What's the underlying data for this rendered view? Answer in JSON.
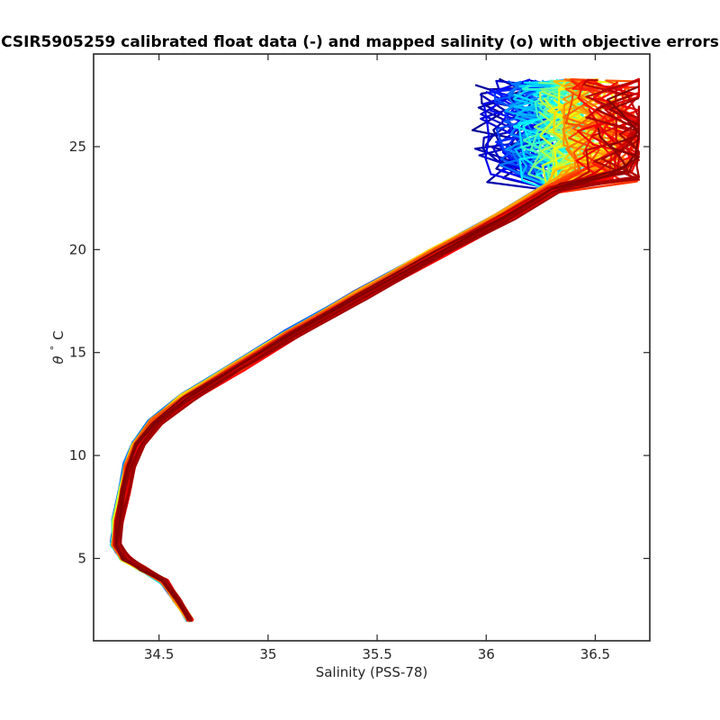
{
  "chart_data": {
    "type": "line",
    "title": "CSIR5905259 calibrated float data (-) and mapped salinity (o) with objective errors",
    "xlabel": "Salinity (PSS-78)",
    "ylabel_symbol": "θ",
    "ylabel_degree": "°",
    "ylabel_unit": "C",
    "xlim": [
      34.2,
      36.75
    ],
    "ylim": [
      1.0,
      29.5
    ],
    "xticks": [
      34.5,
      35,
      35.5,
      36,
      36.5
    ],
    "xtick_labels": [
      "34.5",
      "35",
      "35.5",
      "36",
      "36.5"
    ],
    "yticks": [
      5,
      10,
      15,
      20,
      25
    ],
    "ytick_labels": [
      "5",
      "10",
      "15",
      "20",
      "25"
    ],
    "grid": false,
    "colormap": "jet",
    "series_count": 120,
    "profile_shape": {
      "x": [
        34.64,
        34.58,
        34.52,
        34.42,
        34.34,
        34.3,
        34.31,
        34.34,
        34.36,
        34.4,
        34.48,
        34.62,
        34.85,
        35.1,
        35.42,
        35.78,
        36.08,
        36.3
      ],
      "y": [
        2.0,
        3.0,
        3.9,
        4.5,
        5.0,
        5.7,
        6.8,
        8.3,
        9.5,
        10.5,
        11.6,
        12.8,
        14.3,
        15.9,
        17.8,
        19.9,
        21.6,
        23.0
      ]
    },
    "surface_range": {
      "x": [
        35.85,
        36.7
      ],
      "y": [
        22.5,
        28.3
      ]
    }
  }
}
